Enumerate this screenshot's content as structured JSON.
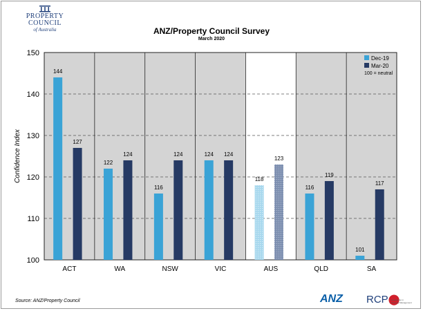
{
  "header": {
    "logo_line1": "PROPERTY",
    "logo_line2": "COUNCIL",
    "logo_line3": "of Australia",
    "title": "ANZ/Property Council Survey",
    "subtitle": "March 2020"
  },
  "footer": {
    "source": "Source: ANZ/Property Council",
    "anz_logo": "ANZ",
    "rcp_logo": "RCP",
    "rcp_tagline": "Leadership in Property Management"
  },
  "chart_data": {
    "type": "bar",
    "title": "ANZ/Property Council Survey",
    "subtitle": "March 2020",
    "ylabel": "Confidence Index",
    "xlabel": "",
    "ylim": [
      100,
      150
    ],
    "yticks": [
      100,
      110,
      120,
      130,
      140,
      150
    ],
    "grid": true,
    "legend_position": "top-right",
    "legend_note": "100 = neutral",
    "categories": [
      "ACT",
      "WA",
      "NSW",
      "VIC",
      "AUS",
      "QLD",
      "SA"
    ],
    "highlight_category": "AUS",
    "series": [
      {
        "name": "Dec-19",
        "color": "#3aa3d6",
        "values": [
          144,
          122,
          116,
          124,
          118,
          116,
          101
        ]
      },
      {
        "name": "Mar-20",
        "color": "#263a64",
        "values": [
          127,
          124,
          124,
          124,
          123,
          119,
          117
        ]
      }
    ],
    "colors": {
      "panel_bg": "#d4d4d4",
      "highlight_bg": "#ffffff",
      "highlight_series_1": "#a8d8ee",
      "highlight_series_2": "#7d8fb0"
    }
  }
}
